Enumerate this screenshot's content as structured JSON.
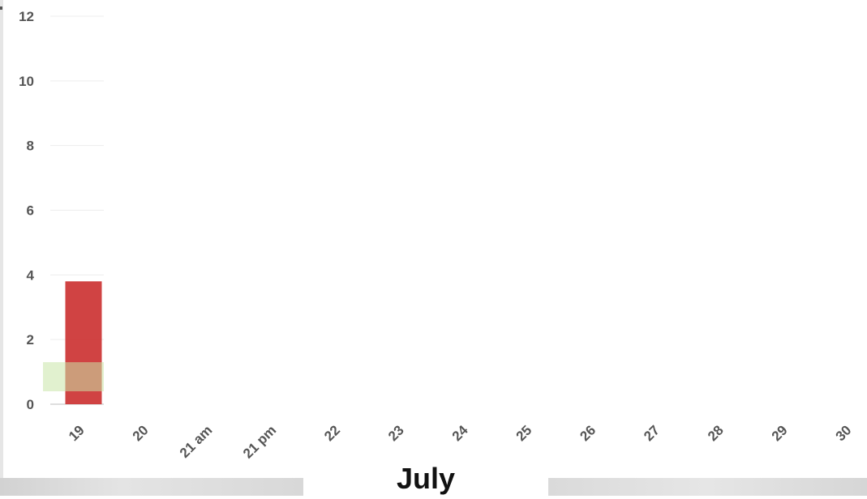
{
  "chart_data": {
    "type": "bar",
    "xlabel": "July",
    "ylabel": "",
    "ylim": [
      0,
      12
    ],
    "yticks": [
      0,
      2,
      4,
      6,
      8,
      10,
      12
    ],
    "grid": true,
    "categories": [
      "19",
      "20",
      "21 am",
      "21 pm",
      "22",
      "23",
      "24",
      "25",
      "26",
      "27",
      "28",
      "29",
      "30"
    ],
    "series": [
      {
        "values": [
          3.8,
          null,
          null,
          null,
          null,
          null,
          null,
          null,
          null,
          null,
          null,
          null,
          null
        ],
        "color": "#cc3333"
      }
    ],
    "band": {
      "category": "19",
      "y_range": [
        0.4,
        1.3
      ],
      "color": "#c8e6a8"
    }
  }
}
